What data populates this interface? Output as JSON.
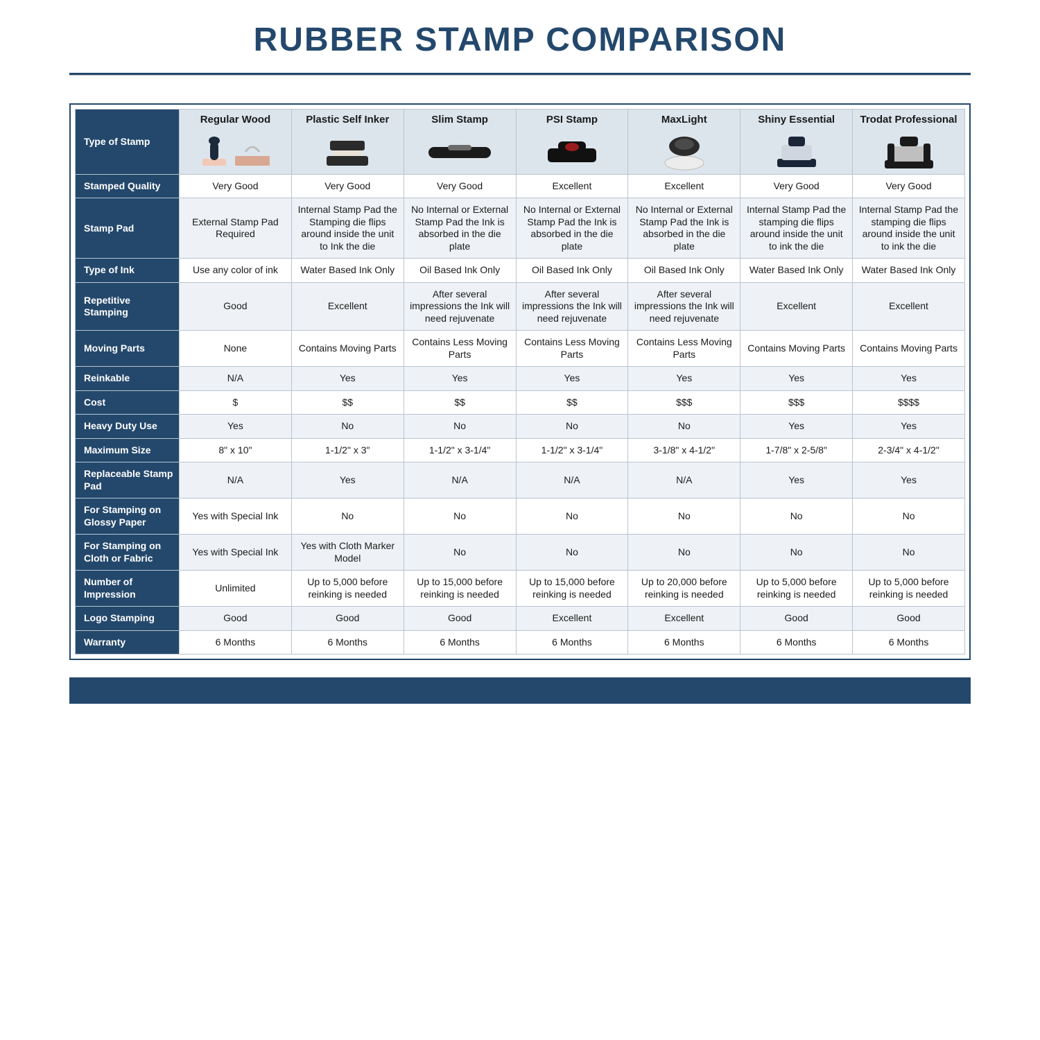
{
  "title": "RUBBER STAMP COMPARISON",
  "colors": {
    "brand": "#24486c",
    "header_bg": "#dde5ec",
    "shade_bg": "#eef2f6",
    "border": "#b8c4d0",
    "text": "#1a1a1a",
    "white": "#ffffff"
  },
  "columns": [
    "Regular Wood",
    "Plastic Self Inker",
    "Slim Stamp",
    "PSI Stamp",
    "MaxLight",
    "Shiny Essential",
    "Trodat Professional"
  ],
  "row_header_label": "Type of Stamp",
  "rows": [
    {
      "label": "Stamped Quality",
      "shade": false,
      "cells": [
        "Very Good",
        "Very Good",
        "Very Good",
        "Excellent",
        "Excellent",
        "Very Good",
        "Very Good"
      ]
    },
    {
      "label": "Stamp Pad",
      "shade": true,
      "cells": [
        "External Stamp Pad Required",
        "Internal Stamp Pad the Stamping die flips around inside the unit to Ink the die",
        "No Internal or External Stamp Pad the Ink is absorbed in the die plate",
        "No Internal or External Stamp Pad the Ink is absorbed in the die plate",
        "No Internal or External Stamp Pad the Ink is absorbed in the die plate",
        "Internal Stamp Pad the stamping die flips around inside the unit to ink the die",
        "Internal Stamp Pad the stamping die flips around inside the unit to ink the die"
      ]
    },
    {
      "label": "Type of Ink",
      "shade": false,
      "cells": [
        "Use any color of ink",
        "Water Based Ink Only",
        "Oil Based Ink Only",
        "Oil Based Ink Only",
        "Oil Based Ink Only",
        "Water Based Ink Only",
        "Water Based Ink Only"
      ]
    },
    {
      "label": "Repetitive Stamping",
      "shade": true,
      "cells": [
        "Good",
        "Excellent",
        "After several impressions the Ink will need rejuvenate",
        "After several impressions the Ink will need rejuvenate",
        "After several impressions the Ink will need rejuvenate",
        "Excellent",
        "Excellent"
      ]
    },
    {
      "label": "Moving Parts",
      "shade": false,
      "cells": [
        "None",
        "Contains Moving Parts",
        "Contains Less Moving Parts",
        "Contains Less Moving Parts",
        "Contains Less Moving Parts",
        "Contains Moving Parts",
        "Contains Moving Parts"
      ]
    },
    {
      "label": "Reinkable",
      "shade": true,
      "cells": [
        "N/A",
        "Yes",
        "Yes",
        "Yes",
        "Yes",
        "Yes",
        "Yes"
      ]
    },
    {
      "label": "Cost",
      "shade": false,
      "cells": [
        "$",
        "$$",
        "$$",
        "$$",
        "$$$",
        "$$$",
        "$$$$"
      ]
    },
    {
      "label": "Heavy Duty Use",
      "shade": true,
      "cells": [
        "Yes",
        "No",
        "No",
        "No",
        "No",
        "Yes",
        "Yes"
      ]
    },
    {
      "label": "Maximum Size",
      "shade": false,
      "cells": [
        "8\" x 10\"",
        "1-1/2\" x 3\"",
        "1-1/2\" x 3-1/4\"",
        "1-1/2\" x 3-1/4\"",
        "3-1/8\" x 4-1/2\"",
        "1-7/8\" x 2-5/8\"",
        "2-3/4\" x 4-1/2\""
      ]
    },
    {
      "label": "Replaceable Stamp Pad",
      "shade": true,
      "cells": [
        "N/A",
        "Yes",
        "N/A",
        "N/A",
        "N/A",
        "Yes",
        "Yes"
      ]
    },
    {
      "label": "For Stamping on Glossy Paper",
      "shade": false,
      "cells": [
        "Yes with Special Ink",
        "No",
        "No",
        "No",
        "No",
        "No",
        "No"
      ]
    },
    {
      "label": "For Stamping on Cloth or Fabric",
      "shade": true,
      "cells": [
        "Yes with Special Ink",
        "Yes with Cloth Marker Model",
        "No",
        "No",
        "No",
        "No",
        "No"
      ]
    },
    {
      "label": "Number of Impression",
      "shade": false,
      "cells": [
        "Unlimited",
        "Up to 5,000 before reinking is needed",
        "Up to 15,000 before reinking is needed",
        "Up to 15,000 before reinking is needed",
        "Up to 20,000 before reinking is needed",
        "Up to 5,000 before reinking is needed",
        "Up to 5,000 before reinking is needed"
      ]
    },
    {
      "label": "Logo Stamping",
      "shade": true,
      "cells": [
        "Good",
        "Good",
        "Good",
        "Excellent",
        "Excellent",
        "Good",
        "Good"
      ]
    },
    {
      "label": "Warranty",
      "shade": false,
      "cells": [
        "6 Months",
        "6 Months",
        "6 Months",
        "6 Months",
        "6 Months",
        "6 Months",
        "6 Months"
      ]
    }
  ],
  "stamp_icons": [
    {
      "name": "wood-stamp-icon",
      "fill": "#d9a893",
      "accent": "#1b2a3a"
    },
    {
      "name": "self-inker-icon",
      "fill": "#2b2b2b",
      "accent": "#e8e2d8"
    },
    {
      "name": "slim-stamp-icon",
      "fill": "#1b1b1b",
      "accent": "#6b6b6b"
    },
    {
      "name": "psi-stamp-icon",
      "fill": "#111111",
      "accent": "#9a1b1b"
    },
    {
      "name": "maxlight-icon",
      "fill": "#ececec",
      "accent": "#2b2b2b"
    },
    {
      "name": "shiny-icon",
      "fill": "#1a2638",
      "accent": "#cfd6df"
    },
    {
      "name": "trodat-icon",
      "fill": "#1a1a1a",
      "accent": "#bfbfbf"
    }
  ]
}
